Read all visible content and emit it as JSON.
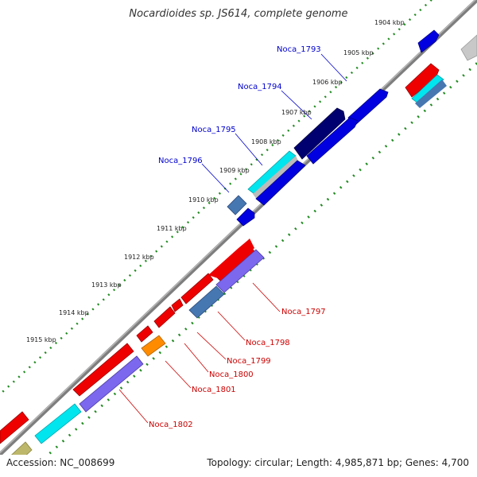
{
  "title": "Nocardioides sp. JS614, complete genome",
  "footer": {
    "accession": "Accession: NC_008699",
    "summary": "Topology: circular; Length: 4,985,871 bp; Genes: 4,700"
  },
  "colors": {
    "backbone": "#8c8c8c",
    "ticks": "#228b22",
    "forward_label": "#0000cc",
    "reverse_label": "#cc0000"
  },
  "scale_labels": [
    "1904 kbp",
    "1905 kbp",
    "1906 kbp",
    "1907 kbp",
    "1908 kbp",
    "1909 kbp",
    "1910 kbp",
    "1911 kbp",
    "1912 kbp",
    "1913 kbp",
    "1914 kbp",
    "1915 kbp"
  ],
  "forward_genes": [
    {
      "name": "Noca_1793"
    },
    {
      "name": "Noca_1794"
    },
    {
      "name": "Noca_1795"
    },
    {
      "name": "Noca_1796"
    }
  ],
  "reverse_genes": [
    {
      "name": "Noca_1797"
    },
    {
      "name": "Noca_1798"
    },
    {
      "name": "Noca_1799"
    },
    {
      "name": "Noca_1800"
    },
    {
      "name": "Noca_1801"
    },
    {
      "name": "Noca_1802"
    }
  ]
}
